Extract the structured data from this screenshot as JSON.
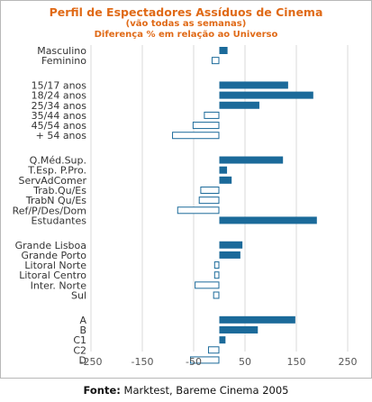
{
  "chart_data": {
    "type": "bar",
    "orientation": "horizontal",
    "title": "Perfil de Espectadores Assíduos de Cinema",
    "subtitle": "(vão todas as semanas)",
    "subtitle2": "Diferença % em relação ao Universo",
    "xlim": [
      -250,
      250
    ],
    "xticks": [
      -250,
      -150,
      -50,
      50,
      150,
      250
    ],
    "grid": true,
    "positive_color": "#1b6a9a",
    "negative_color": "#ffffff",
    "negative_border": "#1b6a9a",
    "groups": [
      {
        "categories": [
          "Masculino",
          "Feminino"
        ],
        "values": [
          16,
          -15
        ]
      },
      {
        "categories": [
          "15/17 anos",
          "18/24 anos",
          "25/34 anos",
          "35/44 anos",
          "45/54 anos",
          "+ 54 anos"
        ],
        "values": [
          134,
          183,
          78,
          -30,
          -52,
          -92
        ]
      },
      {
        "categories": [
          "Q.Méd.Sup.",
          "T.Esp. P.Pro.",
          "ServAdComer",
          "Trab.Qu/Es",
          "TrabN Qu/Es",
          "Ref/P/Des/Dom",
          "Estudantes"
        ],
        "values": [
          124,
          15,
          24,
          -37,
          -40,
          -82,
          190
        ]
      },
      {
        "categories": [
          "Grande Lisboa",
          "Grande Porto",
          "Litoral Norte",
          "Litoral Centro",
          "Inter. Norte",
          "Sul"
        ],
        "values": [
          45,
          41,
          -10,
          -10,
          -48,
          -12
        ]
      },
      {
        "categories": [
          "A",
          "B",
          "C1",
          "C2",
          "D"
        ],
        "values": [
          148,
          75,
          12,
          -22,
          -57
        ]
      }
    ]
  },
  "source": {
    "label": "Fonte:",
    "text": "Marktest, Bareme Cinema 2005"
  }
}
